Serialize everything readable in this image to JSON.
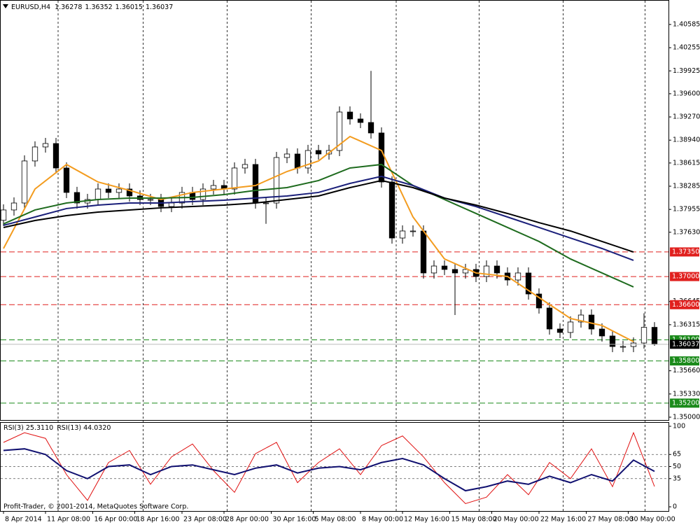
{
  "chart_data": [
    {
      "type": "candlestick",
      "symbol": "EURUSD,H4",
      "open": [
        1.378,
        1.37947,
        1.38046,
        1.38644,
        1.38843,
        1.38892,
        1.38544,
        1.38196,
        1.38046,
        1.38096,
        1.38245,
        1.38196,
        1.38245,
        1.38146,
        1.38096,
        1.38096,
        1.37996,
        1.38046,
        1.38196,
        1.38096,
        1.38245,
        1.38295,
        1.38245,
        1.38544,
        1.38594,
        1.38046,
        1.38046,
        1.38693,
        1.38743,
        1.38544,
        1.38793,
        1.38743,
        1.38793,
        1.3934,
        1.39241,
        1.39191,
        1.39042,
        1.38345,
        1.37548,
        1.37648,
        1.37648,
        1.37051,
        1.3715,
        1.37101,
        1.37051,
        1.37101,
        1.37001,
        1.3715,
        1.37051,
        1.36951,
        1.37051,
        1.36752,
        1.36553,
        1.36254,
        1.36205,
        1.36354,
        1.36453,
        1.36254,
        1.36155,
        1.36005,
        1.36005,
        1.36055,
        1.36278
      ],
      "high": [
        1.38027,
        1.38126,
        1.38724,
        1.38923,
        1.38972,
        1.38972,
        1.38624,
        1.38276,
        1.38176,
        1.38325,
        1.38325,
        1.38325,
        1.38325,
        1.38226,
        1.38176,
        1.38176,
        1.38126,
        1.38276,
        1.38276,
        1.38325,
        1.38375,
        1.38375,
        1.38624,
        1.38674,
        1.38674,
        1.38126,
        1.38773,
        1.38823,
        1.38823,
        1.38873,
        1.38873,
        1.38873,
        1.3942,
        1.3942,
        1.39321,
        1.39925,
        1.39122,
        1.38425,
        1.37728,
        1.37728,
        1.37728,
        1.3723,
        1.3723,
        1.37181,
        1.37181,
        1.37181,
        1.3723,
        1.3723,
        1.37131,
        1.37131,
        1.37131,
        1.36832,
        1.36633,
        1.36334,
        1.36434,
        1.36533,
        1.36533,
        1.36334,
        1.36235,
        1.36085,
        1.36135,
        1.36478,
        1.36352
      ],
      "low": [
        1.3772,
        1.37867,
        1.37966,
        1.38564,
        1.38763,
        1.38464,
        1.38116,
        1.37966,
        1.37966,
        1.38016,
        1.38116,
        1.38116,
        1.38066,
        1.38016,
        1.38016,
        1.37916,
        1.37916,
        1.37966,
        1.38016,
        1.38016,
        1.38165,
        1.38165,
        1.38165,
        1.38464,
        1.37966,
        1.3775,
        1.37966,
        1.38613,
        1.38464,
        1.38464,
        1.38663,
        1.38663,
        1.38713,
        1.39161,
        1.39111,
        1.38962,
        1.38265,
        1.37468,
        1.37468,
        1.37568,
        1.36971,
        1.36971,
        1.37021,
        1.36453,
        1.36971,
        1.36921,
        1.36921,
        1.36971,
        1.36871,
        1.36871,
        1.36672,
        1.36473,
        1.36174,
        1.36125,
        1.36125,
        1.36274,
        1.36174,
        1.36075,
        1.35925,
        1.35925,
        1.35925,
        1.35975,
        1.36015
      ],
      "close": [
        1.37947,
        1.38046,
        1.38644,
        1.38843,
        1.38892,
        1.38544,
        1.38196,
        1.38046,
        1.38096,
        1.38245,
        1.38196,
        1.38245,
        1.38146,
        1.38096,
        1.38096,
        1.37996,
        1.38046,
        1.38196,
        1.38096,
        1.38245,
        1.38295,
        1.38245,
        1.38544,
        1.38594,
        1.38046,
        1.38046,
        1.38693,
        1.38743,
        1.38544,
        1.38793,
        1.38743,
        1.38793,
        1.3934,
        1.39241,
        1.39191,
        1.39042,
        1.38345,
        1.37548,
        1.37648,
        1.37648,
        1.37051,
        1.3715,
        1.37101,
        1.37051,
        1.37101,
        1.37001,
        1.3715,
        1.37051,
        1.36951,
        1.37051,
        1.36752,
        1.36553,
        1.36254,
        1.36205,
        1.36354,
        1.36453,
        1.36254,
        1.36155,
        1.36005,
        1.36005,
        1.36055,
        1.36278,
        1.36037
      ],
      "up_color": "#ffffff",
      "down_color": "#000000",
      "wick_color": "#000000",
      "lines_x": [
        0,
        3,
        6,
        9,
        12,
        15,
        18,
        21,
        24,
        27,
        30,
        33,
        36,
        39,
        42,
        45,
        48,
        51,
        54,
        57,
        60
      ],
      "series": [
        {
          "color": "#f39c1f",
          "values": [
            1.37399,
            1.38245,
            1.38594,
            1.38345,
            1.38225,
            1.38096,
            1.38196,
            1.38245,
            1.38295,
            1.38494,
            1.38644,
            1.38992,
            1.38793,
            1.37847,
            1.3725,
            1.37051,
            1.37001,
            1.36702,
            1.36404,
            1.36304,
            1.36075
          ]
        },
        {
          "color": "#1e6b1e",
          "values": [
            1.37748,
            1.37947,
            1.38046,
            1.38096,
            1.38116,
            1.38116,
            1.38126,
            1.38166,
            1.38225,
            1.38265,
            1.38365,
            1.38544,
            1.38594,
            1.38295,
            1.38096,
            1.37897,
            1.37698,
            1.37499,
            1.3725,
            1.37051,
            1.36852
          ]
        },
        {
          "color": "#1a1f7a",
          "values": [
            1.37728,
            1.37847,
            1.37967,
            1.38016,
            1.38046,
            1.38046,
            1.38066,
            1.38086,
            1.38116,
            1.38146,
            1.38196,
            1.38325,
            1.38425,
            1.38295,
            1.38116,
            1.37996,
            1.37847,
            1.37698,
            1.37548,
            1.37399,
            1.3723
          ]
        },
        {
          "color": "#000000",
          "values": [
            1.37698,
            1.37797,
            1.37867,
            1.37917,
            1.37947,
            1.37977,
            1.37996,
            1.38016,
            1.38046,
            1.38096,
            1.38146,
            1.38265,
            1.38365,
            1.38265,
            1.38116,
            1.38016,
            1.37897,
            1.37767,
            1.37648,
            1.37499,
            1.37349
          ]
        }
      ],
      "levels": [
        {
          "value": 1.3735,
          "label": "1.37350",
          "color": "#e0201e"
        },
        {
          "value": 1.37,
          "label": "1.37000",
          "color": "#e0201e"
        },
        {
          "value": 1.366,
          "label": "1.36600",
          "color": "#e0201e"
        },
        {
          "value": 1.361,
          "label": "1.36100",
          "color": "#1a8a1a"
        },
        {
          "value": 1.358,
          "label": "1.35800",
          "color": "#1a8a1a"
        },
        {
          "value": 1.352,
          "label": "1.35200",
          "color": "#1a8a1a"
        }
      ],
      "xlim": [
        -0.3333,
        63.3333
      ],
      "ylim": [
        1.3496,
        1.40933
      ],
      "yticks": [
        {
          "value": 1.40585,
          "label": "1.40585"
        },
        {
          "value": 1.40255,
          "label": "1.40255"
        },
        {
          "value": 1.39925,
          "label": "1.39925"
        },
        {
          "value": 1.396,
          "label": "1.39600"
        },
        {
          "value": 1.3927,
          "label": "1.39270"
        },
        {
          "value": 1.3894,
          "label": "1.38940"
        },
        {
          "value": 1.38615,
          "label": "1.38615"
        },
        {
          "value": 1.38285,
          "label": "1.38285"
        },
        {
          "value": 1.37955,
          "label": "1.37955"
        },
        {
          "value": 1.3763,
          "label": "1.37630"
        },
        {
          "value": 1.36645,
          "label": "1.36645"
        },
        {
          "value": 1.36315,
          "label": "1.36315"
        },
        {
          "value": 1.3566,
          "label": "1.35660"
        },
        {
          "value": 1.3533,
          "label": "1.35330"
        },
        {
          "value": 1.35,
          "label": "1.35000"
        }
      ],
      "xticks": [
        {
          "value": 0,
          "label": "8 Apr 2014"
        },
        {
          "value": 4,
          "label": "11 Apr 08:00"
        },
        {
          "value": 8.5,
          "label": "16 Apr 00:00"
        },
        {
          "value": 12.5,
          "label": "18 Apr 16:00"
        },
        {
          "value": 17,
          "label": "23 Apr 08:00"
        },
        {
          "value": 21,
          "label": "28 Apr 00:00"
        },
        {
          "value": 25.5,
          "label": "30 Apr 16:00"
        },
        {
          "value": 29.5,
          "label": "5 May 08:00"
        },
        {
          "value": 34,
          "label": "8 May 00:00"
        },
        {
          "value": 38,
          "label": "12 May 16:00"
        },
        {
          "value": 42.5,
          "label": "15 May 08:00"
        },
        {
          "value": 46.5,
          "label": "20 May 00:00"
        },
        {
          "value": 51,
          "label": "22 May 16:00"
        },
        {
          "value": 55.5,
          "label": "27 May 08:00"
        },
        {
          "value": 59.5,
          "label": "30 May 00:00"
        }
      ],
      "separators": [
        5.2,
        13.3,
        21.3,
        29.3,
        37.4,
        45.3,
        53.3,
        61.1
      ]
    },
    {
      "type": "line",
      "x": [
        0,
        2,
        4,
        6,
        8,
        10,
        12,
        14,
        16,
        18,
        20,
        22,
        24,
        26,
        28,
        30,
        32,
        34,
        36,
        38,
        40,
        42,
        44,
        46,
        48,
        50,
        52,
        54,
        56,
        58,
        60,
        62
      ],
      "series": [
        {
          "name": "RSI(3)",
          "color": "#e01010",
          "values": [
            80,
            92,
            85,
            40,
            8,
            55,
            70,
            28,
            62,
            78,
            45,
            18,
            66,
            80,
            30,
            55,
            72,
            40,
            76,
            88,
            62,
            30,
            4,
            12,
            40,
            15,
            55,
            35,
            72,
            25,
            92,
            25.311
          ],
          "value_labels": [
            null,
            null,
            null,
            null,
            null,
            null,
            null,
            null,
            null,
            null,
            null,
            null,
            null,
            null,
            null,
            null,
            null,
            null,
            null,
            null,
            null,
            null,
            null,
            null,
            null,
            null,
            null,
            null,
            null,
            null,
            null,
            "25.3110"
          ]
        },
        {
          "name": "RSI(13)",
          "color": "#101070",
          "values": [
            70,
            72,
            65,
            45,
            35,
            50,
            52,
            40,
            50,
            52,
            46,
            40,
            48,
            52,
            42,
            48,
            50,
            46,
            55,
            60,
            52,
            35,
            20,
            25,
            32,
            28,
            38,
            30,
            40,
            32,
            58,
            44.032
          ],
          "value_labels": [
            null,
            null,
            null,
            null,
            null,
            null,
            null,
            null,
            null,
            null,
            null,
            null,
            null,
            null,
            null,
            null,
            null,
            null,
            null,
            null,
            null,
            null,
            null,
            null,
            null,
            null,
            null,
            null,
            null,
            null,
            null,
            "44.0320"
          ]
        }
      ],
      "xlim": [
        -0.3333,
        63.3333
      ],
      "ylim": [
        -5.2,
        105.2
      ],
      "yticks": [
        100,
        65,
        50,
        35,
        0
      ],
      "levels": [
        65,
        50,
        35
      ]
    }
  ],
  "footer": "Profit-Trader, © 2001-2014, MetaQuotes Software Corp."
}
